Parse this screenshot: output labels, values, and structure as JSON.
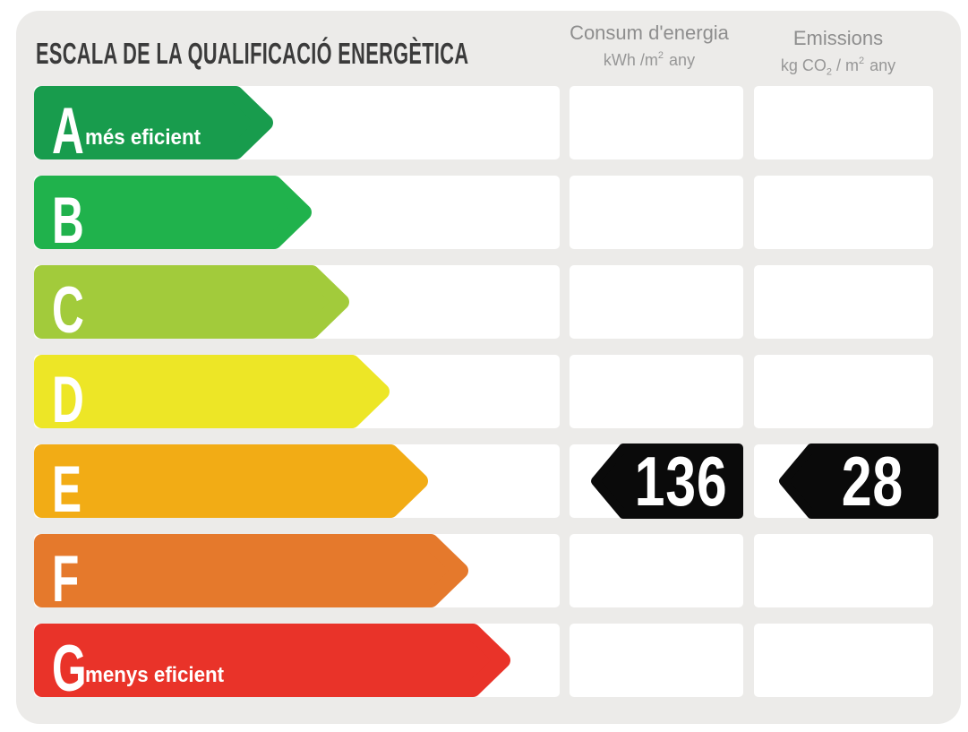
{
  "title": "ESCALA DE LA QUALIFICACIÓ ENERGÈTICA",
  "page": {
    "background": "#FFFFFF",
    "panel_color": "#ECEBE9",
    "cell_color": "#FFFFFF",
    "title_color": "#3B3B3B",
    "header_text_color": "#8E8E8E"
  },
  "columns": {
    "consum": {
      "title": "Consum d'energia",
      "unit_main": "kWh /m",
      "unit_sup": "2",
      "unit_tail": "any"
    },
    "emissions": {
      "title": "Emissions",
      "unit_pre": "kg CO",
      "unit_sub": "2",
      "unit_mid": " / m",
      "unit_sup": "2",
      "unit_tail": "any"
    }
  },
  "scale": {
    "badge_color": "#0A0A0A",
    "value_text_color": "#FFFFFF",
    "bar_text_color": "#FFFFFF",
    "rows": [
      {
        "grade": "A",
        "note": "més eficient",
        "color": "#189C4D",
        "arrow_width": 267,
        "consum": "",
        "emissions": ""
      },
      {
        "grade": "B",
        "note": "",
        "color": "#20B24C",
        "arrow_width": 310,
        "consum": "",
        "emissions": ""
      },
      {
        "grade": "C",
        "note": "",
        "color": "#A2CB3B",
        "arrow_width": 352,
        "consum": "",
        "emissions": ""
      },
      {
        "grade": "D",
        "note": "",
        "color": "#EDE626",
        "arrow_width": 397,
        "consum": "",
        "emissions": ""
      },
      {
        "grade": "E",
        "note": "",
        "color": "#F2AC15",
        "arrow_width": 440,
        "consum": "136",
        "emissions": "28"
      },
      {
        "grade": "F",
        "note": "",
        "color": "#E5792C",
        "arrow_width": 485,
        "consum": "",
        "emissions": ""
      },
      {
        "grade": "G",
        "note": "menys eficient",
        "color": "#E93329",
        "arrow_width": 532,
        "consum": "",
        "emissions": ""
      }
    ]
  },
  "chart_data": {
    "type": "bar",
    "title": "ESCALA DE LA QUALIFICACIÓ ENERGÈTICA",
    "categories": [
      "A",
      "B",
      "C",
      "D",
      "E",
      "F",
      "G"
    ],
    "category_colors": [
      "#189C4D",
      "#20B24C",
      "#A2CB3B",
      "#EDE626",
      "#F2AC15",
      "#E5792C",
      "#E93329"
    ],
    "rating": "E",
    "series": [
      {
        "name": "Consum d'energia kWh/m2 any",
        "values": [
          null,
          null,
          null,
          null,
          136,
          null,
          null
        ]
      },
      {
        "name": "Emissions kg CO2/m2 any",
        "values": [
          null,
          null,
          null,
          null,
          28,
          null,
          null
        ]
      }
    ],
    "annotations": [
      "A = més eficient",
      "G = menys eficient"
    ],
    "legend_position": "top",
    "grid": false
  }
}
